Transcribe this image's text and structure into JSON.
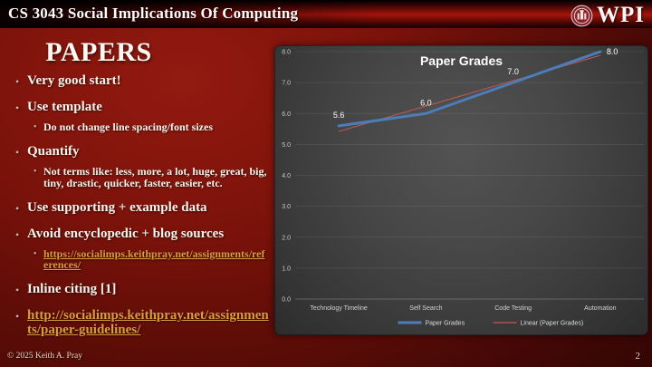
{
  "header": {
    "title": "CS 3043 Social Implications Of Computing",
    "logo_text": "WPI"
  },
  "slide": {
    "title": "PAPERS",
    "bullet_char": "•",
    "bullets": [
      {
        "level": 1,
        "text": "Very good start!"
      },
      {
        "level": 1,
        "text": "Use template"
      },
      {
        "level": 2,
        "text": "Do not change line spacing/font sizes"
      },
      {
        "level": 1,
        "text": "Quantify"
      },
      {
        "level": 2,
        "text": "Not terms like: less, more, a lot, huge, great, big, tiny, drastic, quicker, faster, easier, etc."
      },
      {
        "level": 1,
        "text": "Use supporting + example data"
      },
      {
        "level": 1,
        "text": "Avoid encyclopedic + blog sources"
      },
      {
        "level": 2,
        "text": "https://socialimps.keithpray.net/assignments/references/",
        "link": true
      },
      {
        "level": 1,
        "text": "Inline citing [1]"
      },
      {
        "level": 1,
        "text": "http://socialimps.keithpray.net/assignments/paper-guidelines/",
        "link": true
      }
    ]
  },
  "footer": {
    "copyright": "© 2025 Keith A. Pray",
    "page_number": "2"
  },
  "colors": {
    "slide_background_red": "#7d130b",
    "link_gold": "#d99c3f",
    "chart_panel_gray": "#454545",
    "series_blue": "#4d7cba",
    "trend_red": "#c25a50"
  },
  "chart_data": {
    "type": "line",
    "title": "Paper Grades",
    "categories": [
      "Technology Timeline",
      "Self Search",
      "Code Testing",
      "Automation"
    ],
    "series": [
      {
        "name": "Paper Grades",
        "values": [
          5.6,
          6.0,
          7.0,
          8.0
        ],
        "color": "#4d7cba",
        "width": 3
      },
      {
        "name": "Linear (Paper Grades)",
        "kind": "linear-trendline",
        "color": "#c25a50",
        "width": 1
      }
    ],
    "point_labels": [
      "5.6",
      "6.0",
      "7.0",
      "8.0"
    ],
    "xlabel": "",
    "ylabel": "",
    "ylim": [
      0,
      8
    ],
    "ytick_step": 1,
    "ytick_format_decimals": 1,
    "grid": true,
    "legend_position": "bottom"
  }
}
